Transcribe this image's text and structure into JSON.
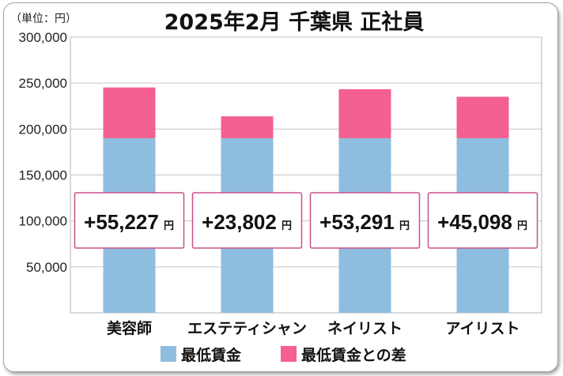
{
  "chart_data": {
    "type": "bar",
    "stacked": true,
    "title": "2025年2月 千葉県 正社員",
    "unit_label": "（単位：円）",
    "categories": [
      "美容師",
      "エステティシャン",
      "ネイリスト",
      "アイリスト"
    ],
    "series": [
      {
        "name": "最低賃金",
        "color": "#8fbde0",
        "values": [
          190000,
          190000,
          190000,
          190000
        ]
      },
      {
        "name": "最低賃金との差",
        "color": "#f4608f",
        "values": [
          55227,
          23802,
          53291,
          45098
        ]
      }
    ],
    "difference_labels": [
      "+55,227",
      "+23,802",
      "+53,291",
      "+45,098"
    ],
    "difference_unit": "円",
    "y_ticks": [
      "50,000",
      "100,000",
      "150,000",
      "200,000",
      "250,000",
      "300,000"
    ],
    "ylim": [
      0,
      300000
    ],
    "grid": true,
    "legend_position": "bottom"
  }
}
